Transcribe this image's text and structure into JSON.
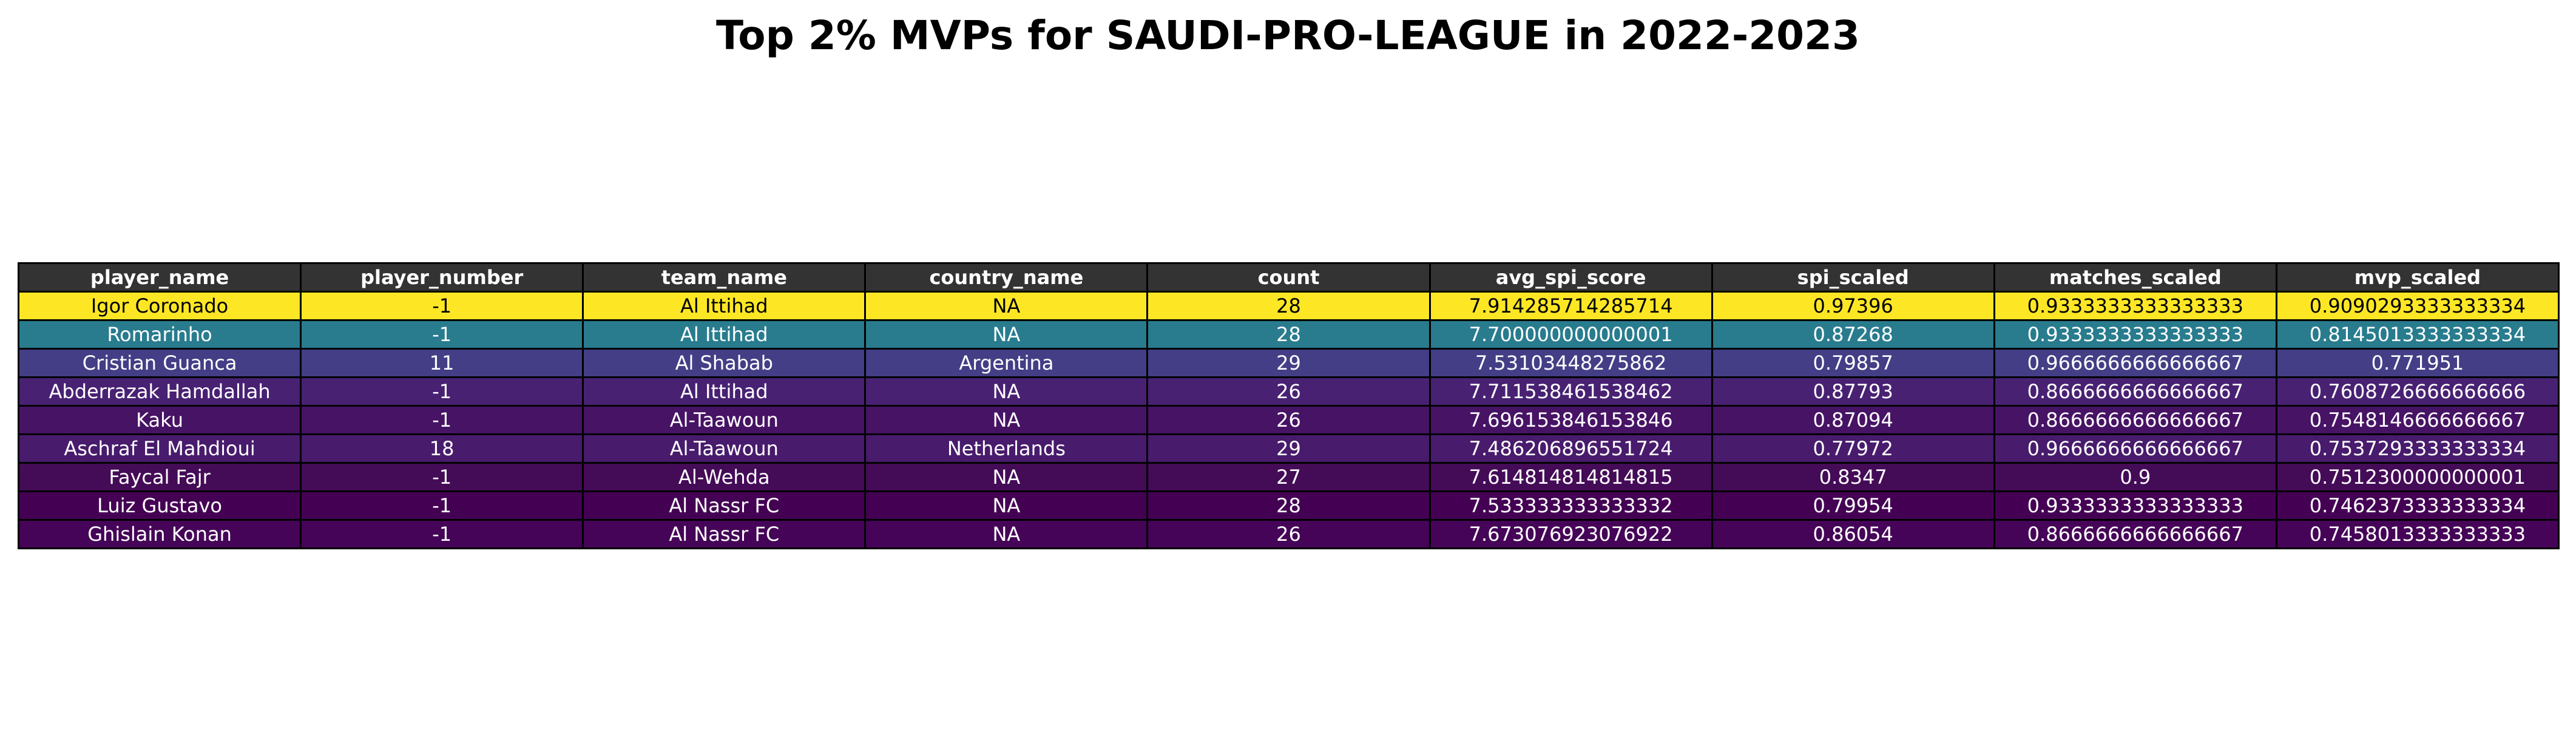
{
  "chart_data": {
    "type": "table",
    "title": "Top 2% MVPs for SAUDI-PRO-LEAGUE in 2022-2023",
    "columns": [
      "player_name",
      "player_number",
      "team_name",
      "country_name",
      "count",
      "avg_spi_score",
      "spi_scaled",
      "matches_scaled",
      "mvp_scaled"
    ],
    "rows": [
      [
        "Igor Coronado",
        "-1",
        "Al Ittihad",
        "NA",
        "28",
        "7.914285714285714",
        "0.97396",
        "0.9333333333333333",
        "0.9090293333333334"
      ],
      [
        "Romarinho",
        "-1",
        "Al Ittihad",
        "NA",
        "28",
        "7.700000000000001",
        "0.87268",
        "0.9333333333333333",
        "0.8145013333333334"
      ],
      [
        "Cristian Guanca",
        "11",
        "Al Shabab",
        "Argentina",
        "29",
        "7.53103448275862",
        "0.79857",
        "0.9666666666666667",
        "0.771951"
      ],
      [
        "Abderrazak Hamdallah",
        "-1",
        "Al Ittihad",
        "NA",
        "26",
        "7.711538461538462",
        "0.87793",
        "0.8666666666666667",
        "0.7608726666666666"
      ],
      [
        "Kaku",
        "-1",
        "Al-Taawoun",
        "NA",
        "26",
        "7.696153846153846",
        "0.87094",
        "0.8666666666666667",
        "0.7548146666666667"
      ],
      [
        "Aschraf El Mahdioui",
        "18",
        "Al-Taawoun",
        "Netherlands",
        "29",
        "7.486206896551724",
        "0.77972",
        "0.9666666666666667",
        "0.7537293333333334"
      ],
      [
        "Faycal Fajr",
        "-1",
        "Al-Wehda",
        "NA",
        "27",
        "7.614814814814815",
        "0.8347",
        "0.9",
        "0.7512300000000001"
      ],
      [
        "Luiz Gustavo",
        "-1",
        "Al Nassr FC",
        "NA",
        "28",
        "7.533333333333332",
        "0.79954",
        "0.9333333333333333",
        "0.7462373333333334"
      ],
      [
        "Ghislain Konan",
        "-1",
        "Al Nassr FC",
        "NA",
        "26",
        "7.673076923076922",
        "0.86054",
        "0.8666666666666667",
        "0.7458013333333333"
      ]
    ],
    "header_color": "#333333",
    "row_colors": [
      "#fde725",
      "#287c8e",
      "#433e85",
      "#482173",
      "#471365",
      "#481b6d",
      "#440b57",
      "#440154",
      "#450457"
    ],
    "row_text_colors": [
      "#000000",
      "#ffffff",
      "#ffffff",
      "#ffffff",
      "#ffffff",
      "#ffffff",
      "#ffffff",
      "#ffffff",
      "#ffffff"
    ]
  }
}
